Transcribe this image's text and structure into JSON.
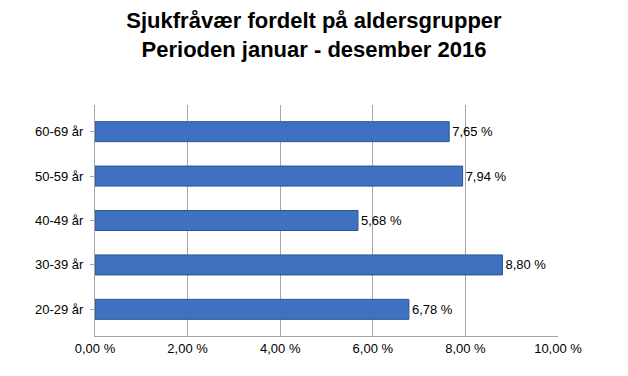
{
  "chart_data": {
    "type": "bar",
    "orientation": "horizontal",
    "title": "Sjukfråvær fordelt på aldersgrupper",
    "subtitle": "Perioden januar - desember 2016",
    "categories": [
      "20-29 år",
      "30-39 år",
      "40-49 år",
      "50-59 år",
      "60-69 år"
    ],
    "values": [
      6.78,
      8.8,
      5.68,
      7.94,
      7.65
    ],
    "value_labels": [
      "6,78 %",
      "8,80 %",
      "5,68 %",
      "7,94 %",
      "7,65 %"
    ],
    "color": "#3f71c0",
    "xlim": [
      0,
      10
    ],
    "xticks": [
      {
        "value": 0,
        "label": "0,00 %"
      },
      {
        "value": 2,
        "label": "2,00 %"
      },
      {
        "value": 4,
        "label": "4,00 %"
      },
      {
        "value": 6,
        "label": "6,00 %"
      },
      {
        "value": 8,
        "label": "8,00 %"
      },
      {
        "value": 10,
        "label": "10,00 %"
      }
    ],
    "grid": true,
    "data_labels": true
  }
}
